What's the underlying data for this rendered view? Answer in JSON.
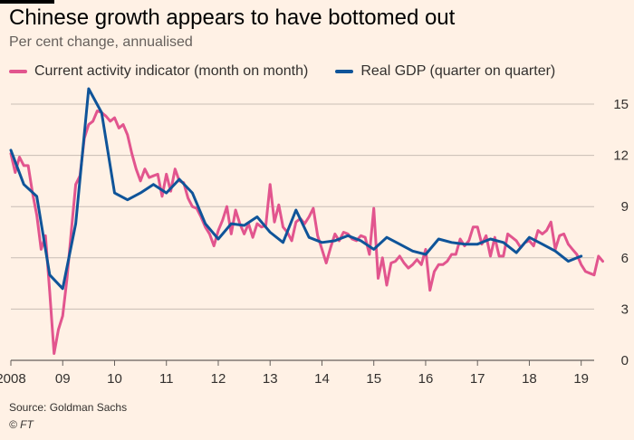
{
  "header": {
    "title": "Chinese growth appears to have bottomed out",
    "subtitle": "Per cent change, annualised"
  },
  "footer": {
    "source": "Source: Goldman Sachs",
    "copyright": "© FT"
  },
  "colors": {
    "background": "#fff1e5",
    "cai": "#e2558e",
    "gdp": "#0f5499",
    "grid": "#c8beb5",
    "text": "#33302e"
  },
  "chart_data": {
    "type": "line",
    "xlabel": "",
    "ylabel": "",
    "xlim": [
      2008.0,
      2019.25
    ],
    "ylim": [
      0,
      15
    ],
    "y_axis_position": "right",
    "grid": "horizontal",
    "legend_position": "top-left",
    "x_ticks": [
      {
        "value": 2008,
        "label": "2008"
      },
      {
        "value": 2009,
        "label": "09"
      },
      {
        "value": 2010,
        "label": "10"
      },
      {
        "value": 2011,
        "label": "11"
      },
      {
        "value": 2012,
        "label": "12"
      },
      {
        "value": 2013,
        "label": "13"
      },
      {
        "value": 2014,
        "label": "14"
      },
      {
        "value": 2015,
        "label": "15"
      },
      {
        "value": 2016,
        "label": "16"
      },
      {
        "value": 2017,
        "label": "17"
      },
      {
        "value": 2018,
        "label": "18"
      },
      {
        "value": 2019,
        "label": "19"
      }
    ],
    "y_ticks": [
      0,
      3,
      6,
      9,
      12,
      15
    ],
    "series": [
      {
        "name": "Current activity indicator (month on month)",
        "color": "#e2558e",
        "frequency": "monthly",
        "start": 2008.0,
        "values": [
          12.1,
          11.0,
          11.9,
          11.4,
          11.4,
          9.8,
          8.5,
          6.5,
          7.3,
          4.0,
          0.4,
          1.8,
          2.6,
          4.8,
          7.6,
          10.3,
          10.8,
          13.0,
          13.8,
          14.0,
          14.6,
          14.5,
          14.3,
          14.0,
          14.2,
          13.6,
          13.8,
          13.2,
          12.1,
          11.2,
          10.5,
          11.2,
          10.7,
          10.8,
          10.9,
          9.6,
          10.9,
          9.9,
          11.2,
          10.5,
          10.4,
          9.5,
          9.0,
          8.9,
          8.4,
          7.8,
          7.4,
          6.7,
          7.6,
          8.2,
          9.0,
          7.4,
          8.8,
          8.0,
          7.4,
          8.0,
          7.2,
          8.0,
          7.8,
          7.9,
          10.3,
          8.1,
          9.1,
          7.8,
          7.5,
          7.0,
          8.1,
          8.3,
          8.0,
          8.4,
          8.9,
          7.3,
          6.5,
          5.7,
          6.6,
          7.4,
          7.0,
          7.5,
          7.4,
          7.1,
          7.0,
          7.3,
          7.2,
          6.2,
          8.9,
          4.8,
          6.0,
          4.4,
          5.7,
          5.8,
          6.1,
          5.7,
          5.4,
          5.6,
          5.9,
          5.6,
          6.5,
          4.1,
          5.2,
          5.6,
          5.6,
          5.8,
          6.2,
          6.2,
          7.1,
          6.7,
          7.0,
          7.8,
          7.8,
          6.8,
          7.3,
          6.1,
          7.2,
          6.1,
          6.1,
          7.4,
          7.2,
          7.0,
          6.6,
          6.9,
          7.0,
          6.7,
          7.6,
          7.4,
          7.6,
          8.1,
          6.5,
          7.3,
          7.4,
          6.8,
          6.5,
          6.2,
          5.6,
          5.2,
          5.1,
          5.0,
          6.1,
          5.8
        ]
      },
      {
        "name": "Real GDP (quarter on quarter)",
        "color": "#0f5499",
        "frequency": "quarterly",
        "x": [
          2008.0,
          2008.25,
          2008.5,
          2008.75,
          2009.0,
          2009.25,
          2009.5,
          2009.75,
          2010.0,
          2010.25,
          2010.5,
          2010.75,
          2011.0,
          2011.25,
          2011.5,
          2011.75,
          2012.0,
          2012.25,
          2012.5,
          2012.75,
          2013.0,
          2013.25,
          2013.5,
          2013.75,
          2014.0,
          2014.25,
          2014.5,
          2014.75,
          2015.0,
          2015.25,
          2015.5,
          2015.75,
          2016.0,
          2016.25,
          2016.5,
          2016.75,
          2017.0,
          2017.25,
          2017.5,
          2017.75,
          2018.0,
          2018.25,
          2018.5,
          2018.75,
          2019.0
        ],
        "values": [
          12.3,
          10.3,
          9.6,
          5.0,
          4.2,
          8.0,
          15.9,
          14.5,
          9.8,
          9.4,
          9.8,
          10.3,
          9.8,
          10.6,
          9.8,
          8.0,
          7.1,
          8.0,
          7.9,
          8.4,
          7.5,
          6.9,
          8.8,
          7.2,
          6.9,
          7.0,
          7.3,
          7.0,
          6.5,
          7.2,
          6.8,
          6.4,
          6.2,
          7.1,
          6.9,
          6.8,
          6.8,
          7.1,
          6.9,
          6.3,
          7.2,
          6.8,
          6.4,
          5.8,
          6.1
        ]
      }
    ]
  }
}
